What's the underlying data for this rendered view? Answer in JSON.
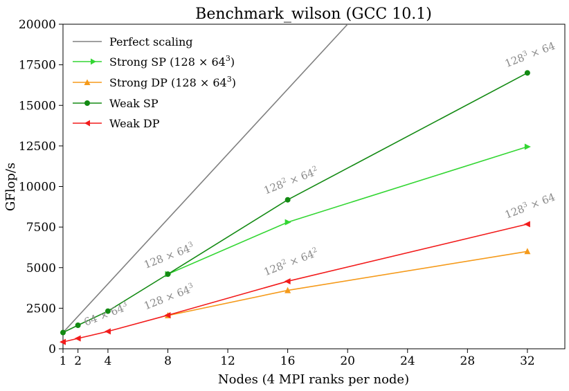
{
  "chart_data": {
    "type": "line",
    "title": "Benchmark_wilson (GCC 10.1)",
    "xlabel": "Nodes (4 MPI ranks per node)",
    "ylabel": "GFlop/s",
    "xlim": [
      1,
      34.5
    ],
    "ylim": [
      0,
      20000
    ],
    "xticks": [
      1,
      2,
      4,
      8,
      12,
      16,
      20,
      24,
      28,
      32
    ],
    "yticks": [
      0,
      2500,
      5000,
      7500,
      10000,
      12500,
      15000,
      17500,
      20000
    ],
    "legend_position": "upper-left",
    "series": [
      {
        "name": "Perfect scaling",
        "color": "#808080",
        "marker": "none",
        "x": [
          1,
          20
        ],
        "y": [
          1000,
          20000
        ]
      },
      {
        "name": "Strong SP (128 × 64³)",
        "color": "#33d633",
        "marker": "triangle-right",
        "x": [
          8,
          16,
          32
        ],
        "y": [
          4600,
          7800,
          12450
        ]
      },
      {
        "name": "Strong DP (128 × 64³)",
        "color": "#f59a1a",
        "marker": "triangle-up",
        "x": [
          8,
          16,
          32
        ],
        "y": [
          2050,
          3600,
          6000
        ]
      },
      {
        "name": "Weak SP",
        "color": "#138a13",
        "marker": "circle",
        "x": [
          1,
          2,
          4,
          8,
          16,
          32
        ],
        "y": [
          1000,
          1450,
          2320,
          4600,
          9180,
          17000
        ]
      },
      {
        "name": "Weak DP",
        "color": "#f21b1b",
        "marker": "triangle-left",
        "x": [
          1,
          2,
          4,
          8,
          16,
          32
        ],
        "y": [
          420,
          640,
          1070,
          2070,
          4160,
          7680
        ]
      }
    ],
    "legend_labels": {
      "perfect": "Perfect scaling",
      "strong_sp": "Strong SP (128 × 64",
      "strong_dp": "Strong DP (128 × 64",
      "weak_sp": "Weak SP",
      "weak_dp": "Weak DP",
      "sup3": "3",
      "close": ")"
    },
    "annotations": [
      {
        "id": "a1",
        "base1": "128 × 64",
        "sup1": "3",
        "base2": "",
        "sup2": "",
        "x": 8,
        "y": 4600
      },
      {
        "id": "a2",
        "base1": "128",
        "sup1": "2",
        "base2": " × 64",
        "sup2": "2",
        "x": 16,
        "y": 9180
      },
      {
        "id": "a3",
        "base1": "128",
        "sup1": "3",
        "base2": " × 64",
        "sup2": "",
        "x": 32,
        "y": 17000
      },
      {
        "id": "a4",
        "base1": "64 × 64",
        "sup1": "3",
        "base2": "",
        "sup2": "",
        "x": 4,
        "y": 1070
      },
      {
        "id": "a5",
        "base1": "128 × 64",
        "sup1": "3",
        "base2": "",
        "sup2": "",
        "x": 8,
        "y": 2070
      },
      {
        "id": "a6",
        "base1": "128",
        "sup1": "2",
        "base2": " × 64",
        "sup2": "2",
        "x": 16,
        "y": 4160
      },
      {
        "id": "a7",
        "base1": "128",
        "sup1": "3",
        "base2": " × 64",
        "sup2": "",
        "x": 32,
        "y": 7680
      }
    ]
  }
}
